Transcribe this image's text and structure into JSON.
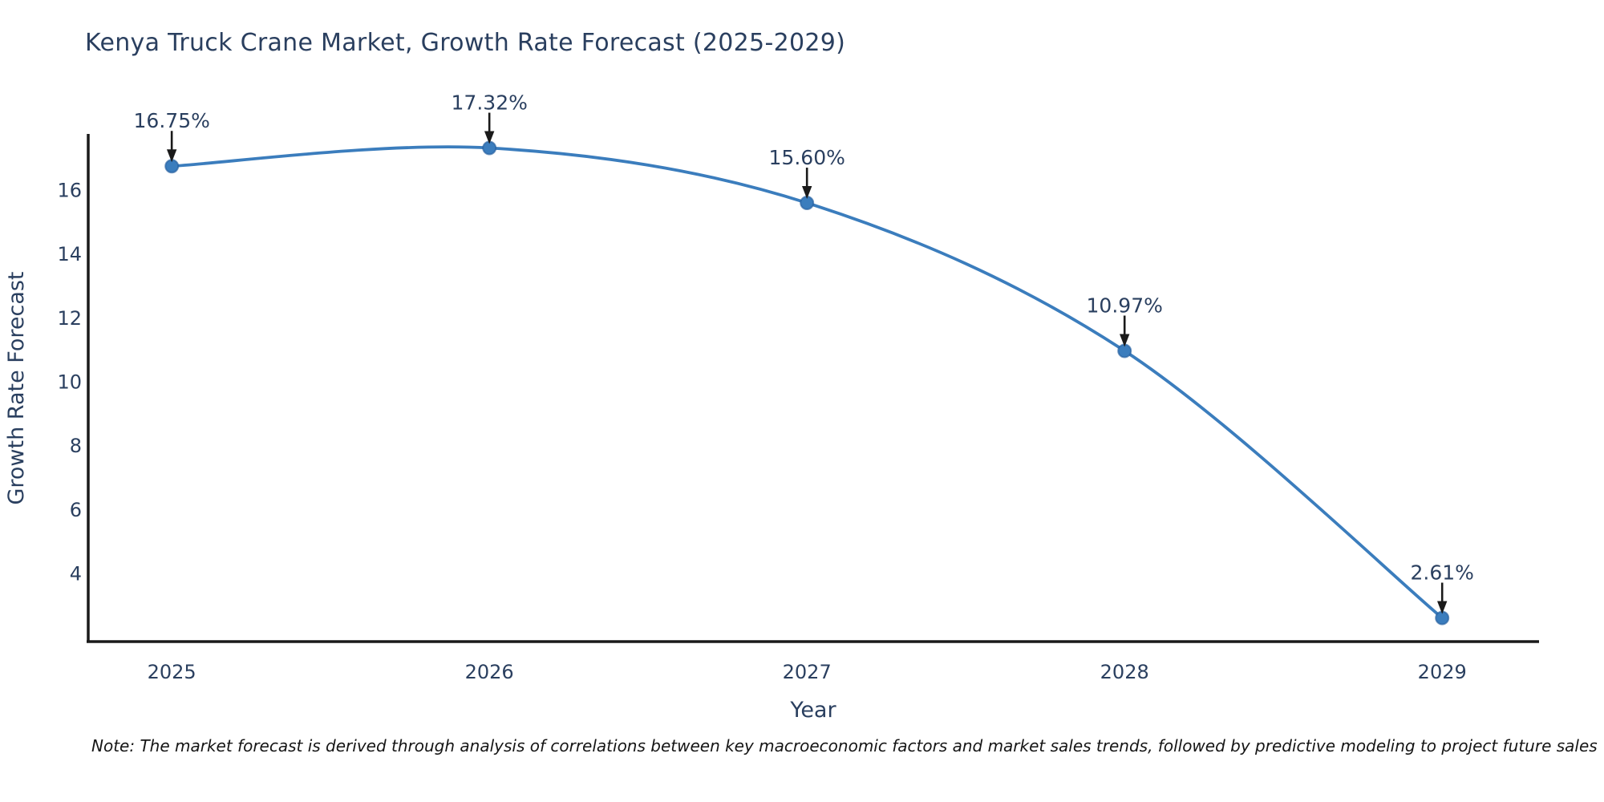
{
  "title": {
    "text": "Kenya Truck Crane Market, Growth Rate Forecast (2025-2029)"
  },
  "note": {
    "text": "Note: The market forecast is derived through analysis of correlations between key macroeconomic factors and market sales trends, followed by predictive modeling to project future sales"
  },
  "chart_data": {
    "type": "line",
    "title": "Kenya Truck Crane Market, Growth Rate Forecast (2025-2029)",
    "xlabel": "Year",
    "ylabel": "Growth Rate Forecast",
    "x": [
      2025,
      2026,
      2027,
      2028,
      2029
    ],
    "y": [
      16.75,
      17.32,
      15.6,
      10.97,
      2.61
    ],
    "point_labels": [
      "16.75%",
      "17.32%",
      "15.60%",
      "10.97%",
      "2.61%"
    ],
    "xticks": [
      2025,
      2026,
      2027,
      2028,
      2029
    ],
    "xtick_labels": [
      "2025",
      "2026",
      "2027",
      "2028",
      "2029"
    ],
    "yticks": [
      4,
      6,
      8,
      10,
      12,
      14,
      16
    ],
    "xlim": [
      2024.737,
      2029.305
    ],
    "ylim": [
      1.87,
      17.76
    ],
    "grid": false,
    "legend": "none",
    "line_shape": "spline",
    "annotation_arrows": true,
    "colors": {
      "line": "#3b7dbd",
      "marker": "#3b7dbd",
      "marker_edge": "#27609e",
      "axis": "#1a1a1a",
      "tick_text": "#2a3f5f",
      "title_text": "#2a3f5f",
      "annotation_text": "#2a3f5f",
      "arrow": "#1a1a1a",
      "note_text": "#151515",
      "background": "#ffffff"
    }
  }
}
